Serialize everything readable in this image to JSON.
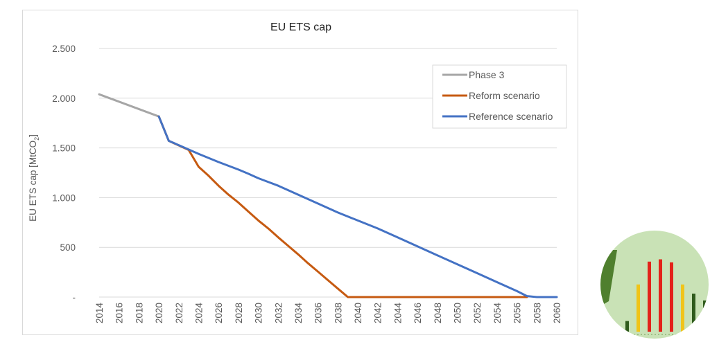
{
  "colors": {
    "phase3": "#a6a6a6",
    "reform": "#c65a11",
    "reference": "#4472c4",
    "grid": "#d9d9d9",
    "logo_bg": "#c9e2b6",
    "logo_dark_green": "#4f7f2e",
    "logo_red": "#e3231a",
    "logo_yellow": "#f0c419",
    "logo_bar_dark": "#2f5b1c"
  },
  "chart_data": {
    "type": "line",
    "title": "EU ETS cap",
    "ylabel_main": "EU ETS cap [MtCO",
    "ylabel_sub": "2",
    "ylabel_end": "]",
    "xlabel": "",
    "ylim": [
      0,
      2500
    ],
    "xlim": [
      2014,
      2060
    ],
    "y_ticks": [
      0,
      500,
      1000,
      1500,
      2000,
      2500
    ],
    "y_tick_labels": [
      "-",
      "500",
      "1.000",
      "1.500",
      "2.000",
      "2.500"
    ],
    "x_ticks": [
      2014,
      2016,
      2018,
      2020,
      2022,
      2024,
      2026,
      2028,
      2030,
      2032,
      2034,
      2036,
      2038,
      2040,
      2042,
      2044,
      2046,
      2048,
      2050,
      2052,
      2054,
      2056,
      2058,
      2060
    ],
    "x_tick_labels": [
      "2014",
      "2016",
      "2018",
      "2020",
      "2022",
      "2024",
      "2026",
      "2028",
      "2030",
      "2032",
      "2034",
      "2036",
      "2038",
      "2040",
      "2042",
      "2044",
      "2046",
      "2048",
      "2050",
      "2052",
      "2054",
      "2056",
      "2058",
      "2060"
    ],
    "legend_position": "top-right",
    "grid": true,
    "series": [
      {
        "name": "Phase 3",
        "color_key": "phase3",
        "points": [
          [
            2014,
            2039
          ],
          [
            2020,
            1816
          ]
        ]
      },
      {
        "name": "Reform scenario",
        "color_key": "reform",
        "points": [
          [
            2020,
            1816
          ],
          [
            2021,
            1571
          ],
          [
            2023,
            1480
          ],
          [
            2024,
            1310
          ],
          [
            2025,
            1220
          ],
          [
            2026,
            1120
          ],
          [
            2027,
            1030
          ],
          [
            2028,
            950
          ],
          [
            2029,
            860
          ],
          [
            2030,
            770
          ],
          [
            2031,
            690
          ],
          [
            2032,
            600
          ],
          [
            2033,
            515
          ],
          [
            2034,
            430
          ],
          [
            2035,
            340
          ],
          [
            2036,
            255
          ],
          [
            2037,
            170
          ],
          [
            2038,
            85
          ],
          [
            2039,
            0
          ],
          [
            2057,
            0
          ]
        ]
      },
      {
        "name": "Reference scenario",
        "color_key": "reference",
        "points": [
          [
            2020,
            1816
          ],
          [
            2021,
            1571
          ],
          [
            2022,
            1528
          ],
          [
            2024,
            1440
          ],
          [
            2026,
            1358
          ],
          [
            2028,
            1282
          ],
          [
            2029,
            1240
          ],
          [
            2030,
            1195
          ],
          [
            2032,
            1120
          ],
          [
            2034,
            1030
          ],
          [
            2036,
            940
          ],
          [
            2038,
            850
          ],
          [
            2040,
            770
          ],
          [
            2042,
            690
          ],
          [
            2044,
            600
          ],
          [
            2046,
            510
          ],
          [
            2048,
            420
          ],
          [
            2050,
            330
          ],
          [
            2052,
            240
          ],
          [
            2054,
            150
          ],
          [
            2056,
            60
          ],
          [
            2057,
            10
          ],
          [
            2058,
            0
          ],
          [
            2060,
            0
          ]
        ]
      }
    ]
  },
  "logo": {
    "bars": [
      {
        "color_key": "logo_bar_dark",
        "value": 0.14
      },
      {
        "color_key": "logo_yellow",
        "value": 0.62
      },
      {
        "color_key": "logo_red",
        "value": 0.92
      },
      {
        "color_key": "logo_red",
        "value": 0.95
      },
      {
        "color_key": "logo_red",
        "value": 0.91
      },
      {
        "color_key": "logo_yellow",
        "value": 0.62
      },
      {
        "color_key": "logo_bar_dark",
        "value": 0.5
      },
      {
        "color_key": "logo_bar_dark",
        "value": 0.41
      }
    ]
  }
}
